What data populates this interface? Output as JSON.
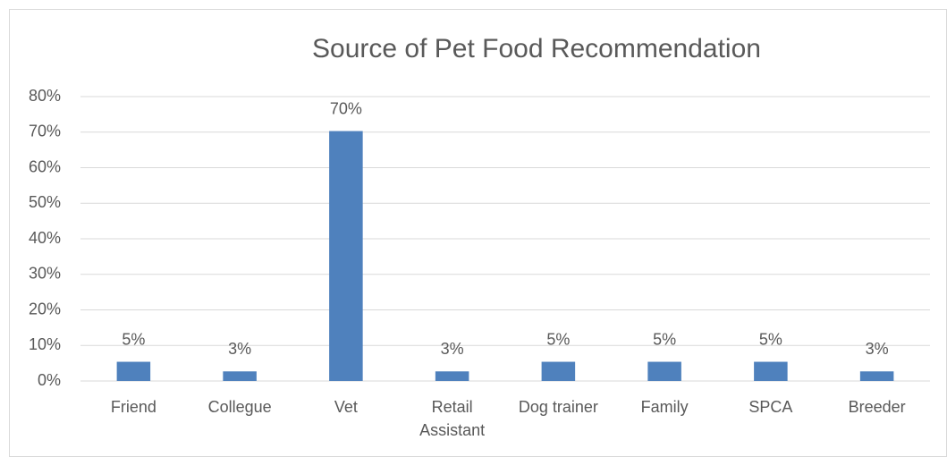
{
  "chart_data": {
    "type": "bar",
    "title": "Source of Pet Food Recommendation",
    "categories": [
      "Friend",
      "Collegue",
      "Vet",
      "Retail Assistant",
      "Dog trainer",
      "Family",
      "SPCA",
      "Breeder"
    ],
    "values": [
      5.4,
      2.7,
      70.3,
      2.7,
      5.4,
      5.4,
      5.4,
      2.7
    ],
    "value_labels": [
      "5%",
      "3%",
      "70%",
      "3%",
      "5%",
      "5%",
      "5%",
      "3%"
    ],
    "color": "#4f81bd",
    "ylim": [
      0,
      80
    ],
    "yticks": [
      {
        "value": 0,
        "label": "0%"
      },
      {
        "value": 10,
        "label": "10%"
      },
      {
        "value": 20,
        "label": "20%"
      },
      {
        "value": 30,
        "label": "30%"
      },
      {
        "value": 40,
        "label": "40%"
      },
      {
        "value": 50,
        "label": "50%"
      },
      {
        "value": 60,
        "label": "60%"
      },
      {
        "value": 70,
        "label": "70%"
      },
      {
        "value": 80,
        "label": "80%"
      }
    ],
    "grid": true
  }
}
